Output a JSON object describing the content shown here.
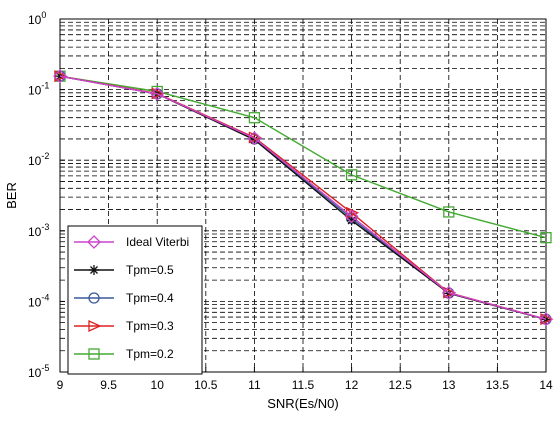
{
  "chart_data": {
    "type": "line",
    "xlabel": "SNR(Es/N0)",
    "ylabel": "BER",
    "xlim": [
      9,
      14
    ],
    "ylim": [
      1e-05,
      1
    ],
    "yscale": "log",
    "grid": true,
    "legend_position": "bottom-left",
    "x_ticks": [
      "9",
      "9.5",
      "10",
      "10.5",
      "11",
      "11.5",
      "12",
      "12.5",
      "13",
      "13.5",
      "14"
    ],
    "y_ticks": [
      {
        "base": "10",
        "exp": "0"
      },
      {
        "base": "10",
        "exp": "-1"
      },
      {
        "base": "10",
        "exp": "-2"
      },
      {
        "base": "10",
        "exp": "-3"
      },
      {
        "base": "10",
        "exp": "-4"
      },
      {
        "base": "10",
        "exp": "-5"
      }
    ],
    "x": [
      9,
      10,
      11,
      12,
      13,
      14
    ],
    "series": [
      {
        "name": "Ideal Viterbi",
        "color": "#cc44cc",
        "marker": "diamond",
        "values": [
          0.155,
          0.087,
          0.0205,
          0.0016,
          0.000132,
          5.6e-05
        ]
      },
      {
        "name": "Tpm=0.5",
        "color": "#111111",
        "marker": "star",
        "values": [
          0.155,
          0.087,
          0.0195,
          0.0014,
          0.00013,
          5.55e-05
        ]
      },
      {
        "name": "Tpm=0.4",
        "color": "#3a5a9a",
        "marker": "circle",
        "values": [
          0.155,
          0.087,
          0.02,
          0.0015,
          0.000131,
          5.58e-05
        ]
      },
      {
        "name": "Tpm=0.3",
        "color": "#dd2222",
        "marker": "triangle-right",
        "values": [
          0.155,
          0.088,
          0.021,
          0.0018,
          0.000133,
          5.6e-05
        ]
      },
      {
        "name": "Tpm=0.2",
        "color": "#44aa33",
        "marker": "square",
        "values": [
          0.155,
          0.094,
          0.04,
          0.0062,
          0.00185,
          0.0008
        ]
      }
    ]
  }
}
